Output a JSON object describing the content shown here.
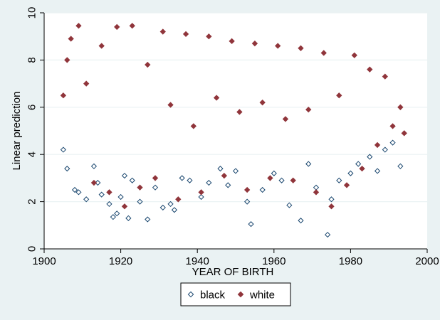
{
  "chart_data": {
    "type": "scatter",
    "title": "",
    "xlabel": "YEAR OF BIRTH",
    "ylabel": "Linear prediction",
    "xlim": [
      1900,
      2000
    ],
    "ylim": [
      0,
      10
    ],
    "xticks": [
      1900,
      1920,
      1940,
      1960,
      1980,
      2000
    ],
    "yticks": [
      0,
      2,
      4,
      6,
      8,
      10
    ],
    "grid": "horizontal",
    "legend_position": "bottom",
    "colors": {
      "background": "#eaf2f3",
      "plot_area": "#ffffff",
      "grid": "#eaf2f3",
      "black_series": "#1a476f",
      "white_series": "#90353b"
    },
    "series": [
      {
        "name": "black",
        "marker": "hollow-diamond",
        "color": "#1a476f",
        "points": [
          [
            1905,
            4.2
          ],
          [
            1906,
            3.4
          ],
          [
            1908,
            2.5
          ],
          [
            1909,
            2.4
          ],
          [
            1911,
            2.1
          ],
          [
            1913,
            3.5
          ],
          [
            1914,
            2.8
          ],
          [
            1915,
            2.3
          ],
          [
            1917,
            1.9
          ],
          [
            1918,
            1.35
          ],
          [
            1919,
            1.5
          ],
          [
            1920,
            2.2
          ],
          [
            1921,
            3.1
          ],
          [
            1922,
            1.3
          ],
          [
            1923,
            2.9
          ],
          [
            1925,
            2.0
          ],
          [
            1927,
            1.25
          ],
          [
            1929,
            2.6
          ],
          [
            1931,
            1.75
          ],
          [
            1933,
            1.9
          ],
          [
            1934,
            1.65
          ],
          [
            1936,
            3.0
          ],
          [
            1938,
            2.9
          ],
          [
            1941,
            2.2
          ],
          [
            1943,
            2.8
          ],
          [
            1946,
            3.4
          ],
          [
            1948,
            2.7
          ],
          [
            1950,
            3.3
          ],
          [
            1953,
            2.0
          ],
          [
            1954,
            1.05
          ],
          [
            1957,
            2.5
          ],
          [
            1960,
            3.2
          ],
          [
            1962,
            2.9
          ],
          [
            1964,
            1.85
          ],
          [
            1967,
            1.2
          ],
          [
            1969,
            3.6
          ],
          [
            1971,
            2.6
          ],
          [
            1974,
            0.6
          ],
          [
            1975,
            2.1
          ],
          [
            1977,
            2.9
          ],
          [
            1980,
            3.2
          ],
          [
            1982,
            3.6
          ],
          [
            1985,
            3.9
          ],
          [
            1987,
            3.3
          ],
          [
            1989,
            4.2
          ],
          [
            1991,
            4.5
          ],
          [
            1993,
            3.5
          ]
        ]
      },
      {
        "name": "white",
        "marker": "filled-diamond",
        "color": "#90353b",
        "points": [
          [
            1905,
            6.5
          ],
          [
            1906,
            8.0
          ],
          [
            1907,
            8.9
          ],
          [
            1909,
            9.45
          ],
          [
            1911,
            7.0
          ],
          [
            1913,
            2.8
          ],
          [
            1915,
            8.6
          ],
          [
            1917,
            2.4
          ],
          [
            1919,
            9.4
          ],
          [
            1921,
            1.8
          ],
          [
            1923,
            9.45
          ],
          [
            1925,
            2.6
          ],
          [
            1927,
            7.8
          ],
          [
            1929,
            3.0
          ],
          [
            1931,
            9.2
          ],
          [
            1933,
            6.1
          ],
          [
            1935,
            2.1
          ],
          [
            1937,
            9.1
          ],
          [
            1939,
            5.2
          ],
          [
            1941,
            2.4
          ],
          [
            1943,
            9.0
          ],
          [
            1945,
            6.4
          ],
          [
            1947,
            3.1
          ],
          [
            1949,
            8.8
          ],
          [
            1951,
            5.8
          ],
          [
            1953,
            2.5
          ],
          [
            1955,
            8.7
          ],
          [
            1957,
            6.2
          ],
          [
            1959,
            3.0
          ],
          [
            1961,
            8.6
          ],
          [
            1963,
            5.5
          ],
          [
            1965,
            2.9
          ],
          [
            1967,
            8.5
          ],
          [
            1969,
            5.9
          ],
          [
            1971,
            2.4
          ],
          [
            1973,
            8.3
          ],
          [
            1975,
            1.8
          ],
          [
            1977,
            6.5
          ],
          [
            1979,
            2.7
          ],
          [
            1981,
            8.2
          ],
          [
            1983,
            3.4
          ],
          [
            1985,
            7.6
          ],
          [
            1987,
            4.4
          ],
          [
            1989,
            7.3
          ],
          [
            1991,
            5.2
          ],
          [
            1993,
            6.0
          ],
          [
            1994,
            4.9
          ]
        ]
      }
    ]
  }
}
